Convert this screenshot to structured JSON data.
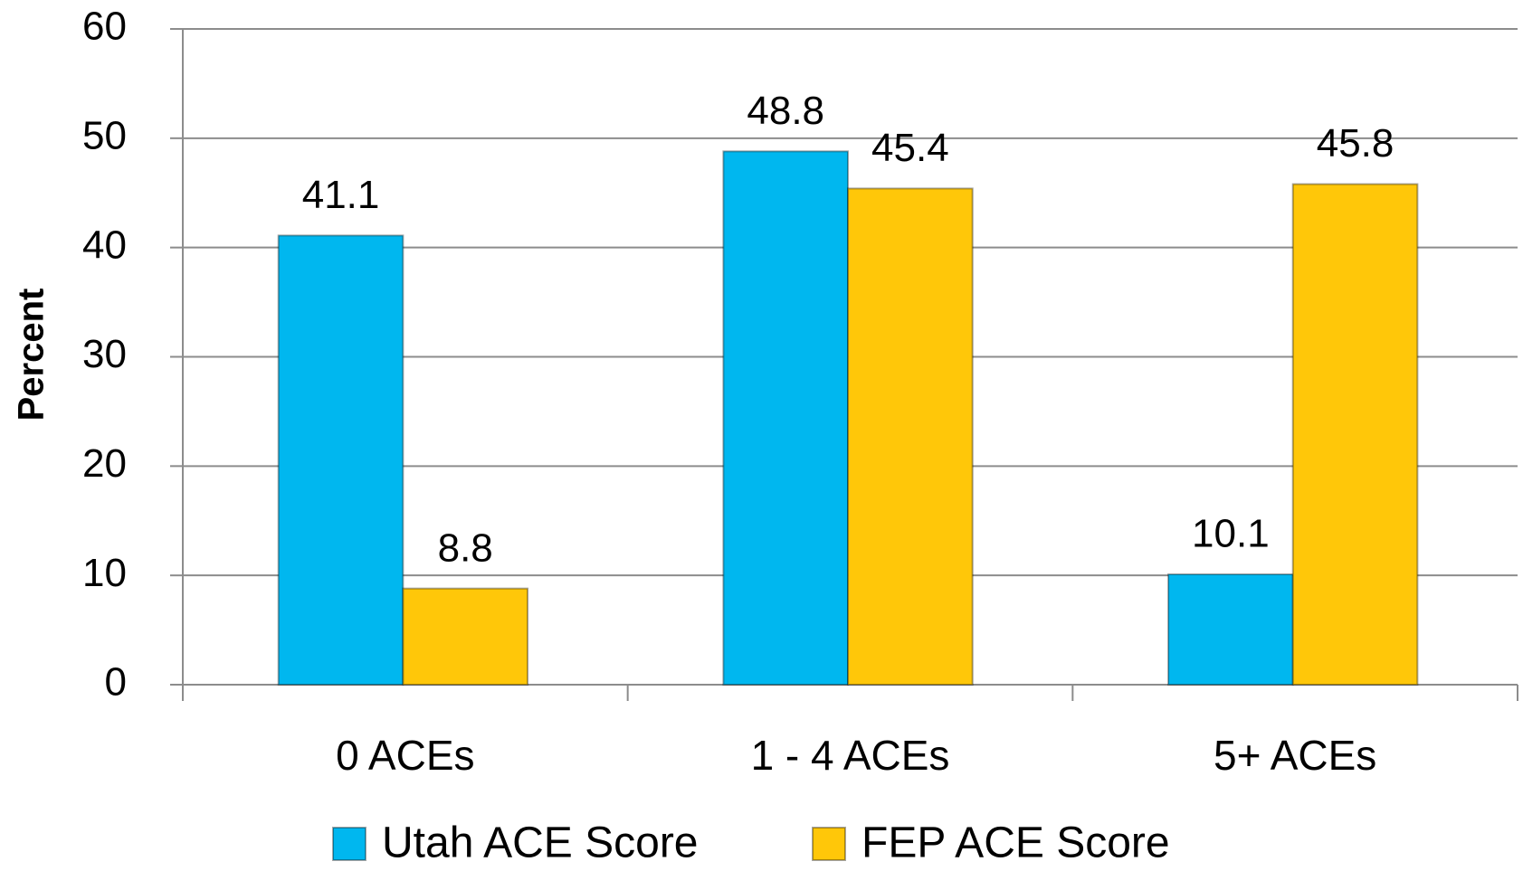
{
  "chart_data": {
    "type": "bar",
    "y_label": "Percent",
    "categories": [
      "0 ACEs",
      "1 - 4 ACEs",
      "5+ ACEs"
    ],
    "series": [
      {
        "name": "Utah ACE Score",
        "color": "#00b7ef",
        "values": [
          41.1,
          48.8,
          10.1
        ]
      },
      {
        "name": "FEP ACE Score",
        "color": "#ffc709",
        "values": [
          8.8,
          45.4,
          45.8
        ]
      }
    ],
    "ylim": [
      0,
      60
    ],
    "yticks": [
      0,
      10,
      20,
      30,
      40,
      50,
      60
    ],
    "grid": true,
    "legend": "bottom"
  }
}
